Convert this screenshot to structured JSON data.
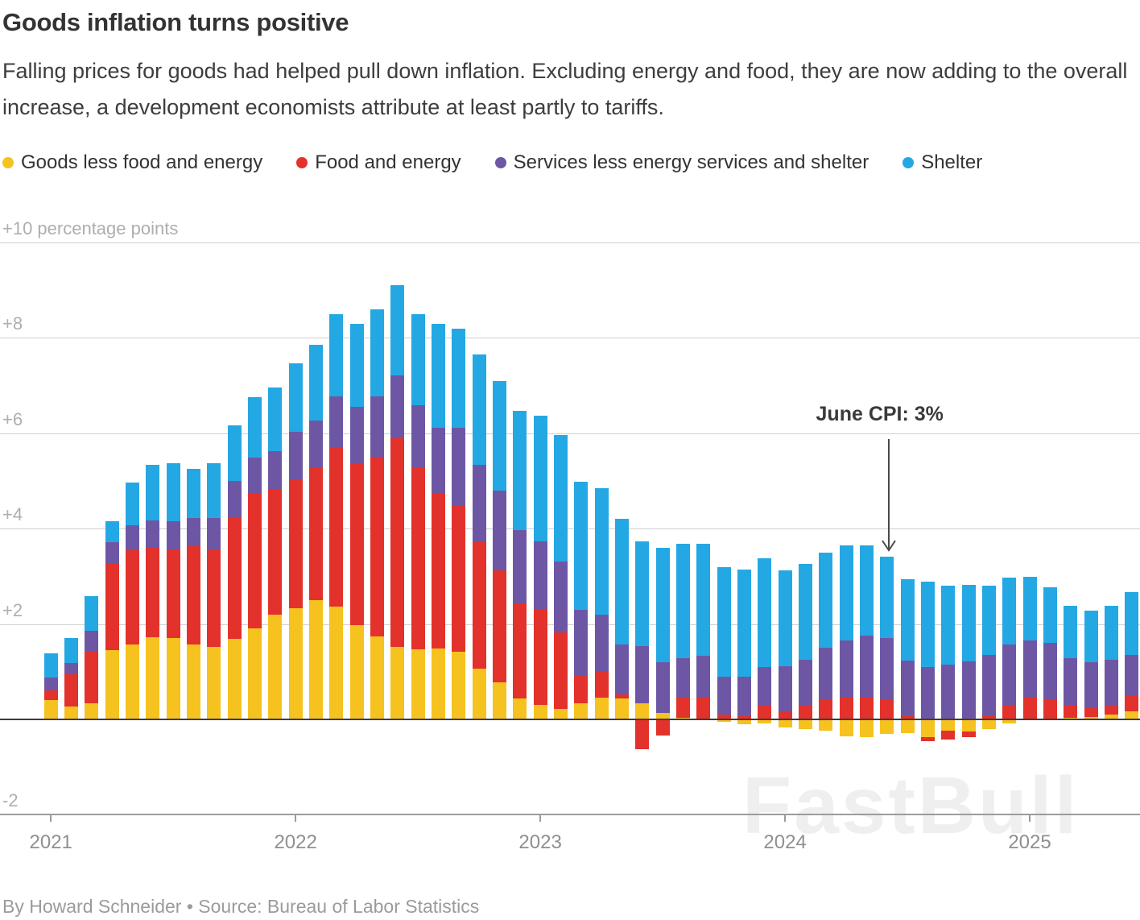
{
  "header": {
    "title": "Goods inflation turns positive",
    "subtitle": "Falling prices for goods had helped pull down inflation. Excluding energy and food, they are now adding to the overall increase, a development economists attribute at least partly to tariffs."
  },
  "legend": {
    "items": [
      {
        "label": "Goods less food and energy",
        "color": "#F5C21F"
      },
      {
        "label": "Food and energy",
        "color": "#E3312B"
      },
      {
        "label": "Services less energy services and shelter",
        "color": "#6D57A5"
      },
      {
        "label": "Shelter",
        "color": "#24A8E4"
      }
    ]
  },
  "chart_data": {
    "type": "bar",
    "stacked": true,
    "title": "Goods inflation turns positive",
    "ylabel": "percentage points",
    "grid": true,
    "legend_position": "top",
    "ylim": [
      -2.4,
      10.4
    ],
    "y_axis": {
      "ticks": [
        {
          "label": "+10 percentage points",
          "value": 10
        },
        {
          "label": "+8",
          "value": 8
        },
        {
          "label": "+6",
          "value": 6
        },
        {
          "label": "+4",
          "value": 4
        },
        {
          "label": "+2",
          "value": 2
        },
        {
          "label": "-2",
          "value": -2
        }
      ]
    },
    "x_years": [
      {
        "label": "2021",
        "month_index": 0
      },
      {
        "label": "2022",
        "month_index": 12
      },
      {
        "label": "2023",
        "month_index": 24
      },
      {
        "label": "2024",
        "month_index": 36
      },
      {
        "label": "2025",
        "month_index": 48
      }
    ],
    "months": [
      "Jan 2021",
      "Feb 2021",
      "Mar 2021",
      "Apr 2021",
      "May 2021",
      "Jun 2021",
      "Jul 2021",
      "Aug 2021",
      "Sep 2021",
      "Oct 2021",
      "Nov 2021",
      "Dec 2021",
      "Jan 2022",
      "Feb 2022",
      "Mar 2022",
      "Apr 2022",
      "May 2022",
      "Jun 2022",
      "Jul 2022",
      "Aug 2022",
      "Sep 2022",
      "Oct 2022",
      "Nov 2022",
      "Dec 2022",
      "Jan 2023",
      "Feb 2023",
      "Mar 2023",
      "Apr 2023",
      "May 2023",
      "Jun 2023",
      "Jul 2023",
      "Aug 2023",
      "Sep 2023",
      "Oct 2023",
      "Nov 2023",
      "Dec 2023",
      "Jan 2024",
      "Feb 2024",
      "Mar 2024",
      "Apr 2024",
      "May 2024",
      "Jun 2024",
      "Jul 2024",
      "Aug 2024",
      "Sep 2024",
      "Oct 2024",
      "Nov 2024",
      "Dec 2024",
      "Jan 2025",
      "Feb 2025",
      "Mar 2025",
      "Apr 2025",
      "May 2025",
      "Jun 2025"
    ],
    "series": [
      {
        "name": "Goods less food and energy",
        "color": "#F5C21F",
        "values": [
          0.41,
          0.27,
          0.34,
          1.45,
          1.57,
          1.72,
          1.71,
          1.57,
          1.52,
          1.69,
          1.91,
          2.2,
          2.33,
          2.5,
          2.37,
          1.98,
          1.74,
          1.52,
          1.47,
          1.49,
          1.42,
          1.06,
          0.78,
          0.44,
          0.3,
          0.22,
          0.34,
          0.46,
          0.44,
          0.34,
          0.14,
          0.03,
          0.02,
          -0.05,
          -0.1,
          -0.08,
          -0.17,
          -0.2,
          -0.23,
          -0.35,
          -0.37,
          -0.31,
          -0.28,
          -0.38,
          -0.24,
          -0.25,
          -0.2,
          -0.08,
          0.0,
          0.0,
          0.03,
          0.05,
          0.1,
          0.17
        ]
      },
      {
        "name": "Food and energy",
        "color": "#E3312B",
        "values": [
          0.2,
          0.68,
          1.1,
          1.82,
          1.98,
          1.89,
          1.86,
          2.06,
          2.04,
          2.53,
          2.82,
          2.62,
          2.7,
          2.77,
          3.34,
          3.38,
          3.77,
          4.37,
          3.8,
          3.24,
          3.08,
          2.65,
          2.35,
          1.99,
          1.99,
          1.6,
          0.59,
          0.56,
          0.08,
          -0.63,
          -0.34,
          0.42,
          0.45,
          0.1,
          0.08,
          0.3,
          0.15,
          0.3,
          0.4,
          0.45,
          0.45,
          0.4,
          0.08,
          -0.08,
          -0.18,
          -0.12,
          0.08,
          0.3,
          0.45,
          0.4,
          0.25,
          0.2,
          0.2,
          0.34
        ]
      },
      {
        "name": "Services less energy services and shelter",
        "color": "#6D57A5",
        "values": [
          0.27,
          0.24,
          0.41,
          0.44,
          0.52,
          0.56,
          0.59,
          0.59,
          0.66,
          0.78,
          0.76,
          0.81,
          1.0,
          0.99,
          1.06,
          1.2,
          1.27,
          1.32,
          1.32,
          1.39,
          1.62,
          1.62,
          1.66,
          1.54,
          1.45,
          1.49,
          1.37,
          1.18,
          1.05,
          1.2,
          1.06,
          0.84,
          0.86,
          0.8,
          0.82,
          0.8,
          0.97,
          0.95,
          1.1,
          1.2,
          1.3,
          1.3,
          1.16,
          1.1,
          1.15,
          1.22,
          1.27,
          1.27,
          1.2,
          1.2,
          1.0,
          0.95,
          0.95,
          0.84
        ]
      },
      {
        "name": "Shelter",
        "color": "#24A8E4",
        "values": [
          0.51,
          0.51,
          0.74,
          0.44,
          0.9,
          1.17,
          1.22,
          1.03,
          1.15,
          1.17,
          1.27,
          1.33,
          1.43,
          1.59,
          1.72,
          1.74,
          1.82,
          1.89,
          1.91,
          2.18,
          2.07,
          2.33,
          2.3,
          2.5,
          2.62,
          2.65,
          2.69,
          2.65,
          2.64,
          2.2,
          2.4,
          2.4,
          2.36,
          2.3,
          2.24,
          2.28,
          2.0,
          2.01,
          2.0,
          2.0,
          1.9,
          1.71,
          1.7,
          1.79,
          1.65,
          1.6,
          1.45,
          1.4,
          1.34,
          1.17,
          1.1,
          1.08,
          1.13,
          1.32
        ]
      }
    ],
    "annotation": {
      "text": "June CPI: 3%",
      "month": "Jun 2024",
      "value": 3
    }
  },
  "watermark": {
    "text": "FastBull"
  },
  "footer": {
    "credit": "By Howard Schneider • Source: Bureau of Labor Statistics"
  }
}
